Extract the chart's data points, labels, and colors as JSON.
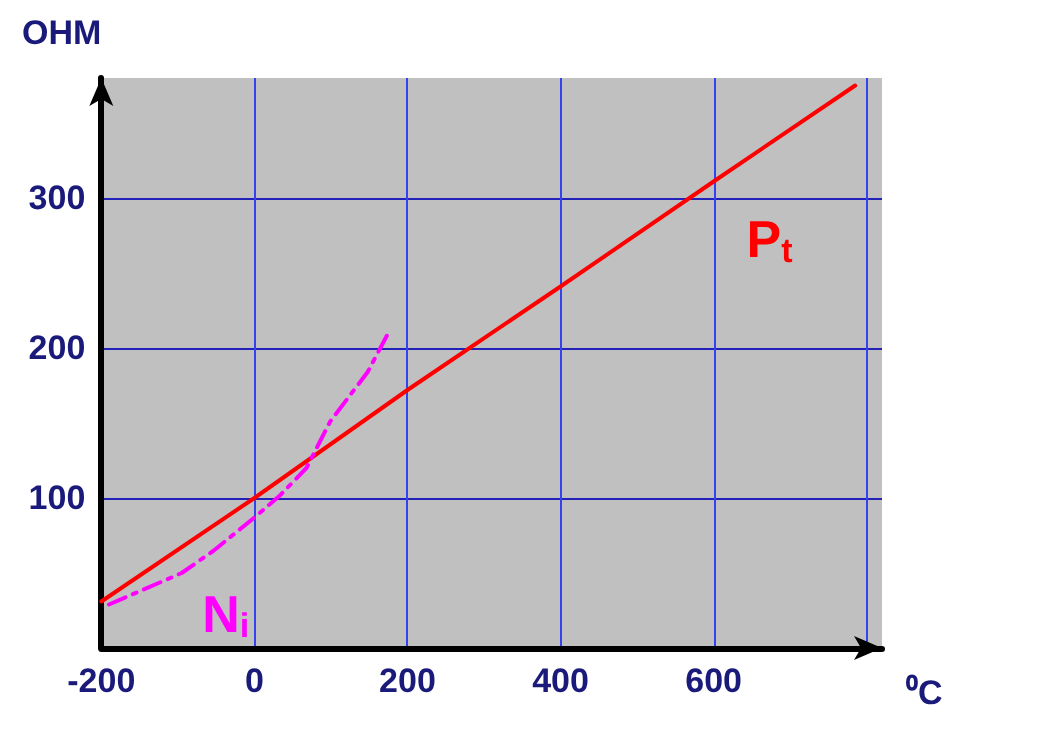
{
  "chart_data": {
    "type": "line",
    "xlabel": "⁰C",
    "ylabel": "OHM",
    "xlim": [
      -200,
      820
    ],
    "ylim": [
      0,
      380
    ],
    "xticks": [
      -200,
      0,
      200,
      400,
      600,
      {
        "value": 800,
        "label": null
      }
    ],
    "yticks": [
      {
        "value": 0,
        "label": null
      },
      100,
      200,
      300
    ],
    "grid": true,
    "legend": false,
    "marker": "none",
    "series": [
      {
        "name": "P$_{t}$",
        "color": "#ff0000",
        "line_style": "solid",
        "x": [
          -200,
          0,
          200,
          400,
          600,
          785
        ],
        "values": [
          31,
          100,
          172,
          241,
          311,
          375
        ]
      },
      {
        "name": "N$_{i}$",
        "color": "#ff00ff",
        "line_style": "dashed",
        "x": [
          -190,
          -95,
          -53,
          0,
          34,
          68,
          99,
          148,
          177
        ],
        "values": [
          29,
          50,
          65,
          87,
          102,
          120,
          151,
          184,
          212
        ]
      }
    ]
  }
}
